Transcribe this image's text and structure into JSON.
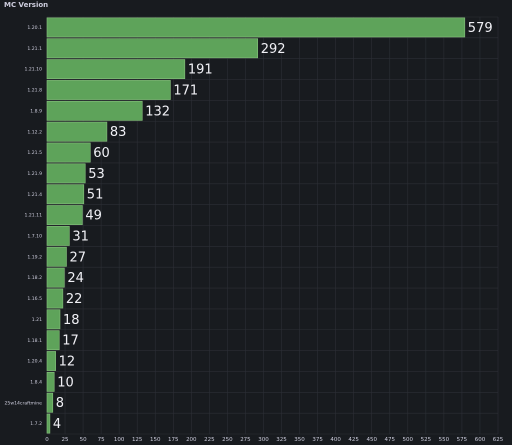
{
  "panel": {
    "title": "MC Version"
  },
  "colors": {
    "background": "#181b1f",
    "bar_fill": "#5ea35a",
    "bar_border": "#88c27e",
    "text": "#ccccdc",
    "grid": "#2c2f36"
  },
  "chart_data": {
    "type": "bar",
    "orientation": "horizontal",
    "title": "MC Version",
    "categories": [
      "1.20.1",
      "1.21.1",
      "1.21.10",
      "1.21.8",
      "1.8.9",
      "1.12.2",
      "1.21.5",
      "1.21.9",
      "1.21.4",
      "1.21.11",
      "1.7.10",
      "1.19.2",
      "1.18.2",
      "1.16.5",
      "1.21",
      "1.18.1",
      "1.20.4",
      "1.8.4",
      "25w14craftmine",
      "1.7.2"
    ],
    "values": [
      579,
      292,
      191,
      171,
      132,
      83,
      60,
      53,
      51,
      49,
      31,
      27,
      24,
      22,
      18,
      17,
      12,
      10,
      8,
      4
    ],
    "x_ticks": [
      0,
      25,
      50,
      75,
      100,
      125,
      150,
      175,
      200,
      225,
      250,
      275,
      300,
      325,
      350,
      375,
      400,
      425,
      450,
      475,
      500,
      525,
      550,
      575,
      600,
      625
    ],
    "xlim": [
      0,
      625
    ],
    "grid": true,
    "legend": "none",
    "value_labels": true
  }
}
